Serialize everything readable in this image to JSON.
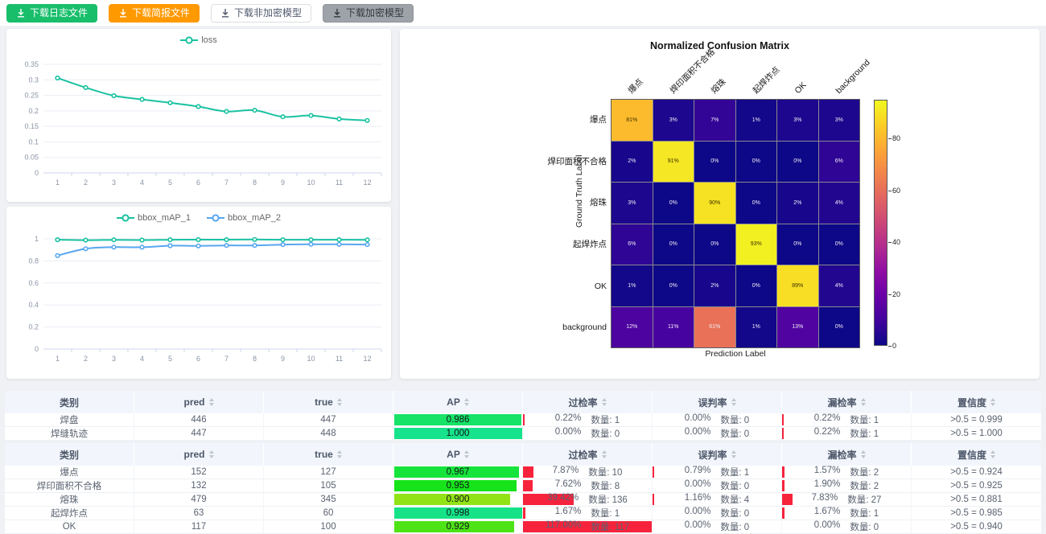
{
  "toolbar": {
    "buttons": [
      {
        "label": "下载日志文件",
        "variant": "success"
      },
      {
        "label": "下载简报文件",
        "variant": "warning"
      },
      {
        "label": "下载非加密模型",
        "variant": "default"
      },
      {
        "label": "下载加密模型",
        "variant": "disabled"
      }
    ]
  },
  "colors": {
    "teal": "#1ac2a1",
    "blue": "#58a7f0",
    "red_bar": "#f7233c",
    "success": "#19be6b",
    "warning": "#ff9900",
    "grid_line": "#e9edf5",
    "axis_line": "#ccd6eb"
  },
  "chart_data": [
    {
      "type": "line",
      "title": "",
      "x": [
        1,
        2,
        3,
        4,
        5,
        6,
        7,
        8,
        9,
        10,
        11,
        12
      ],
      "series": [
        {
          "name": "loss",
          "color_key": "teal",
          "values": [
            0.306,
            0.275,
            0.249,
            0.237,
            0.226,
            0.214,
            0.198,
            0.202,
            0.181,
            0.185,
            0.174,
            0.169
          ]
        }
      ],
      "ylim": [
        0,
        0.35
      ],
      "yticks": [
        0,
        0.05,
        0.1,
        0.15,
        0.2,
        0.25,
        0.3,
        0.35
      ],
      "grid": true,
      "legend_position": "top"
    },
    {
      "type": "line",
      "title": "",
      "x": [
        1,
        2,
        3,
        4,
        5,
        6,
        7,
        8,
        9,
        10,
        11,
        12
      ],
      "series": [
        {
          "name": "bbox_mAP_1",
          "color_key": "teal",
          "values": [
            0.992,
            0.988,
            0.991,
            0.989,
            0.992,
            0.993,
            0.993,
            0.994,
            0.992,
            0.992,
            0.992,
            0.991
          ]
        },
        {
          "name": "bbox_mAP_2",
          "color_key": "blue",
          "values": [
            0.848,
            0.91,
            0.925,
            0.924,
            0.938,
            0.936,
            0.94,
            0.94,
            0.948,
            0.951,
            0.95,
            0.948
          ]
        }
      ],
      "ylim": [
        0,
        1
      ],
      "yticks": [
        0,
        0.2,
        0.4,
        0.6,
        0.8,
        1
      ],
      "grid": true,
      "legend_position": "top"
    },
    {
      "type": "heatmap",
      "title": "Normalized Confusion Matrix",
      "xlabel": "Prediction Label",
      "ylabel": "Ground Truth Label",
      "labels": [
        "爆点",
        "焊印面积不合格",
        "熔珠",
        "起焊炸点",
        "OK",
        "background"
      ],
      "matrix": [
        [
          81,
          3,
          7,
          1,
          3,
          3
        ],
        [
          2,
          91,
          0,
          0,
          0,
          6
        ],
        [
          3,
          0,
          90,
          0,
          2,
          4
        ],
        [
          6,
          0,
          0,
          93,
          0,
          0
        ],
        [
          1,
          0,
          2,
          0,
          89,
          4
        ],
        [
          12,
          11,
          61,
          1,
          13,
          0
        ]
      ],
      "unit": "%",
      "vmin": 0,
      "vmax": 95,
      "colormap": "plasma",
      "colorbar_ticks": [
        0,
        20,
        40,
        60,
        80
      ]
    }
  ],
  "count_label": "数量:",
  "table_headers": [
    {
      "label": "类别",
      "sortable": false
    },
    {
      "label": "pred",
      "sortable": true
    },
    {
      "label": "true",
      "sortable": true
    },
    {
      "label": "AP",
      "sortable": true
    },
    {
      "label": "过检率",
      "sortable": true
    },
    {
      "label": "误判率",
      "sortable": true
    },
    {
      "label": "漏检率",
      "sortable": true
    },
    {
      "label": "置信度",
      "sortable": true
    }
  ],
  "tables": [
    {
      "rows": [
        {
          "category": "焊盘",
          "pred": "446",
          "true": "447",
          "ap": "0.986",
          "over": {
            "pct": "0.22%",
            "count": "1"
          },
          "mis": {
            "pct": "0.00%",
            "count": "0"
          },
          "miss": {
            "pct": "0.22%",
            "count": "1"
          },
          "conf": ">0.5 = 0.999"
        },
        {
          "category": "焊缝轨迹",
          "pred": "447",
          "true": "448",
          "ap": "1.000",
          "over": {
            "pct": "0.00%",
            "count": "0"
          },
          "mis": {
            "pct": "0.00%",
            "count": "0"
          },
          "miss": {
            "pct": "0.22%",
            "count": "1"
          },
          "conf": ">0.5 = 1.000"
        }
      ]
    },
    {
      "rows": [
        {
          "category": "爆点",
          "pred": "152",
          "true": "127",
          "ap": "0.967",
          "over": {
            "pct": "7.87%",
            "count": "10"
          },
          "mis": {
            "pct": "0.79%",
            "count": "1"
          },
          "miss": {
            "pct": "1.57%",
            "count": "2"
          },
          "conf": ">0.5 = 0.924"
        },
        {
          "category": "焊印面积不合格",
          "pred": "132",
          "true": "105",
          "ap": "0.953",
          "over": {
            "pct": "7.62%",
            "count": "8"
          },
          "mis": {
            "pct": "0.00%",
            "count": "0"
          },
          "miss": {
            "pct": "1.90%",
            "count": "2"
          },
          "conf": ">0.5 = 0.925"
        },
        {
          "category": "熔珠",
          "pred": "479",
          "true": "345",
          "ap": "0.900",
          "over": {
            "pct": "39.42%",
            "count": "136"
          },
          "mis": {
            "pct": "1.16%",
            "count": "4"
          },
          "miss": {
            "pct": "7.83%",
            "count": "27"
          },
          "conf": ">0.5 = 0.881"
        },
        {
          "category": "起焊炸点",
          "pred": "63",
          "true": "60",
          "ap": "0.998",
          "over": {
            "pct": "1.67%",
            "count": "1"
          },
          "mis": {
            "pct": "0.00%",
            "count": "0"
          },
          "miss": {
            "pct": "1.67%",
            "count": "1"
          },
          "conf": ">0.5 = 0.985"
        },
        {
          "category": "OK",
          "pred": "117",
          "true": "100",
          "ap": "0.929",
          "over": {
            "pct": "117.00%",
            "count": "117"
          },
          "mis": {
            "pct": "0.00%",
            "count": "0"
          },
          "miss": {
            "pct": "0.00%",
            "count": "0"
          },
          "conf": ">0.5 = 0.940"
        }
      ]
    }
  ]
}
